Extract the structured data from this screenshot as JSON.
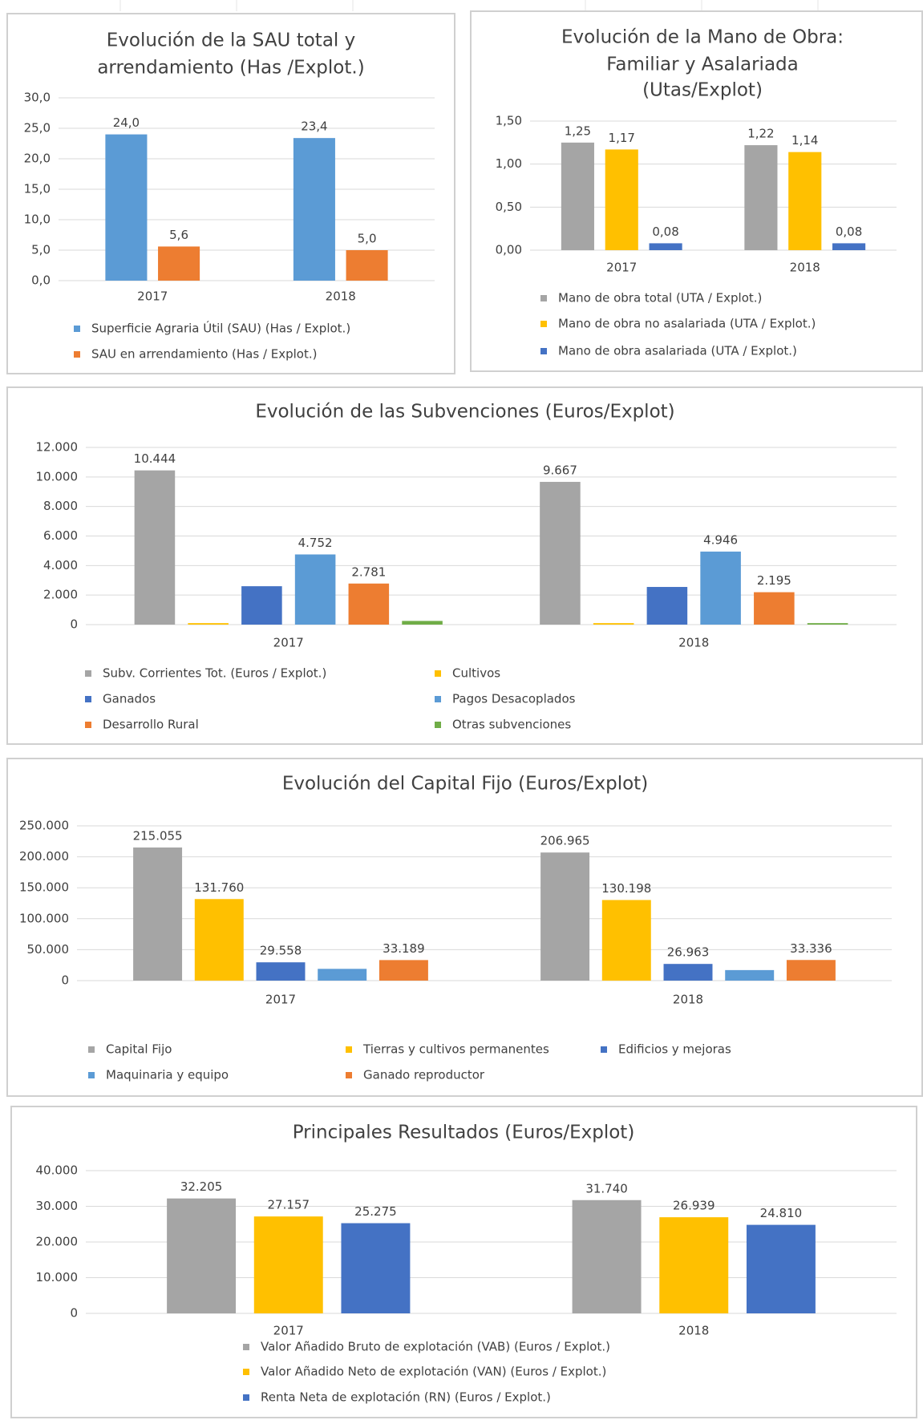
{
  "chart_data": [
    {
      "type": "bar",
      "title": [
        "Evolución de la SAU total y",
        "arrendamiento (Has /Explot.)"
      ],
      "categories": [
        "2017",
        "2018"
      ],
      "series": [
        {
          "name": "Superficie Agraria Útil (SAU) (Has / Explot.)",
          "color": "#5b9bd5",
          "values": [
            24.0,
            23.4
          ],
          "value_labels": [
            "24,0",
            "23,4"
          ]
        },
        {
          "name": "SAU en arrendamiento (Has / Explot.)",
          "color": "#ed7d31",
          "values": [
            5.6,
            5.0
          ],
          "value_labels": [
            "5,6",
            "5,0"
          ]
        }
      ],
      "ylim": [
        0,
        30
      ],
      "yticks": [
        {
          "value": 0,
          "label": "0,0"
        },
        {
          "value": 5,
          "label": "5,0"
        },
        {
          "value": 10,
          "label": "10,0"
        },
        {
          "value": 15,
          "label": "15,0"
        },
        {
          "value": 20,
          "label": "20,0"
        },
        {
          "value": 25,
          "label": "25,0"
        },
        {
          "value": 30,
          "label": "30,0"
        }
      ],
      "grid": true
    },
    {
      "type": "bar",
      "title": [
        "Evolución de la Mano de Obra:",
        "Familiar y Asalariada",
        "(Utas/Explot)"
      ],
      "categories": [
        "2017",
        "2018"
      ],
      "series": [
        {
          "name": "Mano de obra total (UTA / Explot.)",
          "color": "#a5a5a5",
          "values": [
            1.25,
            1.22
          ],
          "value_labels": [
            "1,25",
            "1,22"
          ]
        },
        {
          "name": "Mano de obra no asalariada (UTA / Explot.)",
          "color": "#ffc000",
          "values": [
            1.17,
            1.14
          ],
          "value_labels": [
            "1,17",
            "1,14"
          ]
        },
        {
          "name": "Mano de obra asalariada (UTA / Explot.)",
          "color": "#4472c4",
          "values": [
            0.08,
            0.08
          ],
          "value_labels": [
            "0,08",
            "0,08"
          ]
        }
      ],
      "ylim": [
        0,
        1.5
      ],
      "yticks": [
        {
          "value": 0,
          "label": "0,00"
        },
        {
          "value": 0.5,
          "label": "0,50"
        },
        {
          "value": 1,
          "label": "1,00"
        },
        {
          "value": 1.5,
          "label": "1,50"
        }
      ],
      "grid": true
    },
    {
      "type": "bar",
      "title": [
        "Evolución de las Subvenciones (Euros/Explot)"
      ],
      "categories": [
        "2017",
        "2018"
      ],
      "series": [
        {
          "name": "Subv. Corrientes Tot. (Euros / Explot.)",
          "color": "#a5a5a5",
          "values": [
            10444,
            9667
          ],
          "value_labels": [
            "10.444",
            "9.667"
          ]
        },
        {
          "name": "Cultivos",
          "color": "#ffc000",
          "values": [
            100,
            100
          ],
          "value_labels": [
            null,
            null
          ]
        },
        {
          "name": "Ganados",
          "color": "#4472c4",
          "values": [
            2600,
            2550
          ],
          "value_labels": [
            null,
            null
          ]
        },
        {
          "name": "Pagos Desacoplados",
          "color": "#5b9bd5",
          "values": [
            4752,
            4946
          ],
          "value_labels": [
            "4.752",
            "4.946"
          ]
        },
        {
          "name": "Desarrollo Rural",
          "color": "#ed7d31",
          "values": [
            2781,
            2195
          ],
          "value_labels": [
            "2.781",
            "2.195"
          ]
        },
        {
          "name": "Otras subvenciones",
          "color": "#70ad47",
          "values": [
            250,
            100
          ],
          "value_labels": [
            null,
            null
          ]
        }
      ],
      "ylim": [
        0,
        12000
      ],
      "yticks": [
        0,
        {
          "value": 2000,
          "label": "2.000"
        },
        {
          "value": 4000,
          "label": "4.000"
        },
        {
          "value": 6000,
          "label": "6.000"
        },
        {
          "value": 8000,
          "label": "8.000"
        },
        {
          "value": 10000,
          "label": "10.000"
        },
        {
          "value": 12000,
          "label": "12.000"
        }
      ],
      "grid": true
    },
    {
      "type": "bar",
      "title": [
        "Evolución del Capital Fijo (Euros/Explot)"
      ],
      "categories": [
        "2017",
        "2018"
      ],
      "series": [
        {
          "name": "Capital Fijo",
          "color": "#a5a5a5",
          "values": [
            215055,
            206965
          ],
          "value_labels": [
            "215.055",
            "206.965"
          ]
        },
        {
          "name": "Tierras y cultivos permanentes",
          "color": "#ffc000",
          "values": [
            131760,
            130198
          ],
          "value_labels": [
            "131.760",
            "130.198"
          ]
        },
        {
          "name": "Edificios y mejoras",
          "color": "#4472c4",
          "values": [
            29558,
            26963
          ],
          "value_labels": [
            "29.558",
            "26.963"
          ]
        },
        {
          "name": "Maquinaria y equipo",
          "color": "#5b9bd5",
          "values": [
            19000,
            17000
          ],
          "value_labels": [
            null,
            null
          ]
        },
        {
          "name": "Ganado reproductor",
          "color": "#ed7d31",
          "values": [
            33189,
            33336
          ],
          "value_labels": [
            "33.189",
            "33.336"
          ]
        }
      ],
      "ylim": [
        0,
        250000
      ],
      "yticks": [
        0,
        {
          "value": 50000,
          "label": "50.000"
        },
        {
          "value": 100000,
          "label": "100.000"
        },
        {
          "value": 150000,
          "label": "150.000"
        },
        {
          "value": 200000,
          "label": "200.000"
        },
        {
          "value": 250000,
          "label": "250.000"
        }
      ],
      "grid": true
    },
    {
      "type": "bar",
      "title": [
        "Principales Resultados (Euros/Explot)"
      ],
      "categories": [
        "2017",
        "2018"
      ],
      "series": [
        {
          "name": "Valor Añadido Bruto de explotación (VAB) (Euros / Explot.)",
          "color": "#a5a5a5",
          "values": [
            32205,
            31740
          ],
          "value_labels": [
            "32.205",
            "31.740"
          ]
        },
        {
          "name": "Valor Añadido Neto de explotación (VAN) (Euros / Explot.)",
          "color": "#ffc000",
          "values": [
            27157,
            26939
          ],
          "value_labels": [
            "27.157",
            "26.939"
          ]
        },
        {
          "name": "Renta Neta de explotación (RN) (Euros / Explot.)",
          "color": "#4472c4",
          "values": [
            25275,
            24810
          ],
          "value_labels": [
            "25.275",
            "24.810"
          ]
        }
      ],
      "ylim": [
        0,
        40000
      ],
      "yticks": [
        0,
        {
          "value": 10000,
          "label": "10.000"
        },
        {
          "value": 20000,
          "label": "20.000"
        },
        {
          "value": 30000,
          "label": "30.000"
        },
        {
          "value": 40000,
          "label": "40.000"
        }
      ],
      "grid": true
    }
  ]
}
